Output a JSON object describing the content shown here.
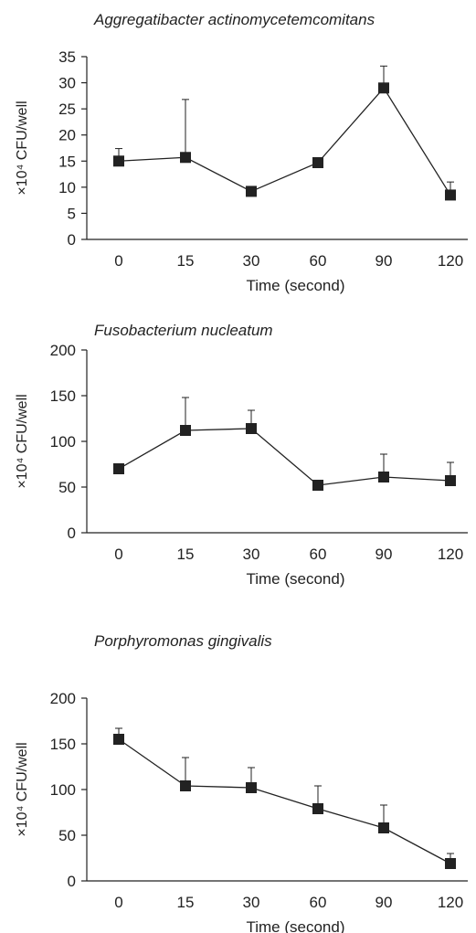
{
  "chart_data": [
    {
      "type": "line",
      "title": "Aggregatibacter actinomycetemcomitans",
      "xlabel": "Time (second)",
      "ylabel": "×10⁴ CFU/well",
      "categories": [
        "0",
        "15",
        "30",
        "60",
        "90",
        "120"
      ],
      "series": [
        {
          "values": [
            15,
            15.7,
            9.2,
            14.7,
            29,
            8.5
          ],
          "error_upper": [
            17.4,
            26.8,
            9.2,
            14.7,
            33.2,
            11
          ]
        }
      ],
      "ylim": [
        0,
        35
      ],
      "yticks": [
        0,
        5,
        10,
        15,
        20,
        25,
        30,
        35
      ],
      "grid": false,
      "marker": "square",
      "color": "#222222"
    },
    {
      "type": "line",
      "title": "Fusobacterium nucleatum",
      "xlabel": "Time (second)",
      "ylabel": "×10⁴ CFU/well",
      "categories": [
        "0",
        "15",
        "30",
        "60",
        "90",
        "120"
      ],
      "series": [
        {
          "values": [
            70,
            112,
            114,
            52,
            61,
            57
          ],
          "error_upper": [
            70,
            148,
            134,
            52,
            86,
            77
          ]
        }
      ],
      "ylim": [
        0,
        200
      ],
      "yticks": [
        0,
        50,
        100,
        150,
        200
      ],
      "grid": false,
      "marker": "square",
      "color": "#222222"
    },
    {
      "type": "line",
      "title": "Porphyromonas gingivalis",
      "xlabel": "Time (second)",
      "ylabel": "×10⁴ CFU/well",
      "categories": [
        "0",
        "15",
        "30",
        "60",
        "90",
        "120"
      ],
      "series": [
        {
          "values": [
            155,
            104,
            102,
            79,
            58,
            19
          ],
          "error_upper": [
            167,
            135,
            124,
            104,
            83,
            30
          ]
        }
      ],
      "ylim": [
        0,
        200
      ],
      "yticks": [
        0,
        50,
        100,
        150,
        200
      ],
      "grid": false,
      "marker": "square",
      "color": "#222222"
    }
  ]
}
